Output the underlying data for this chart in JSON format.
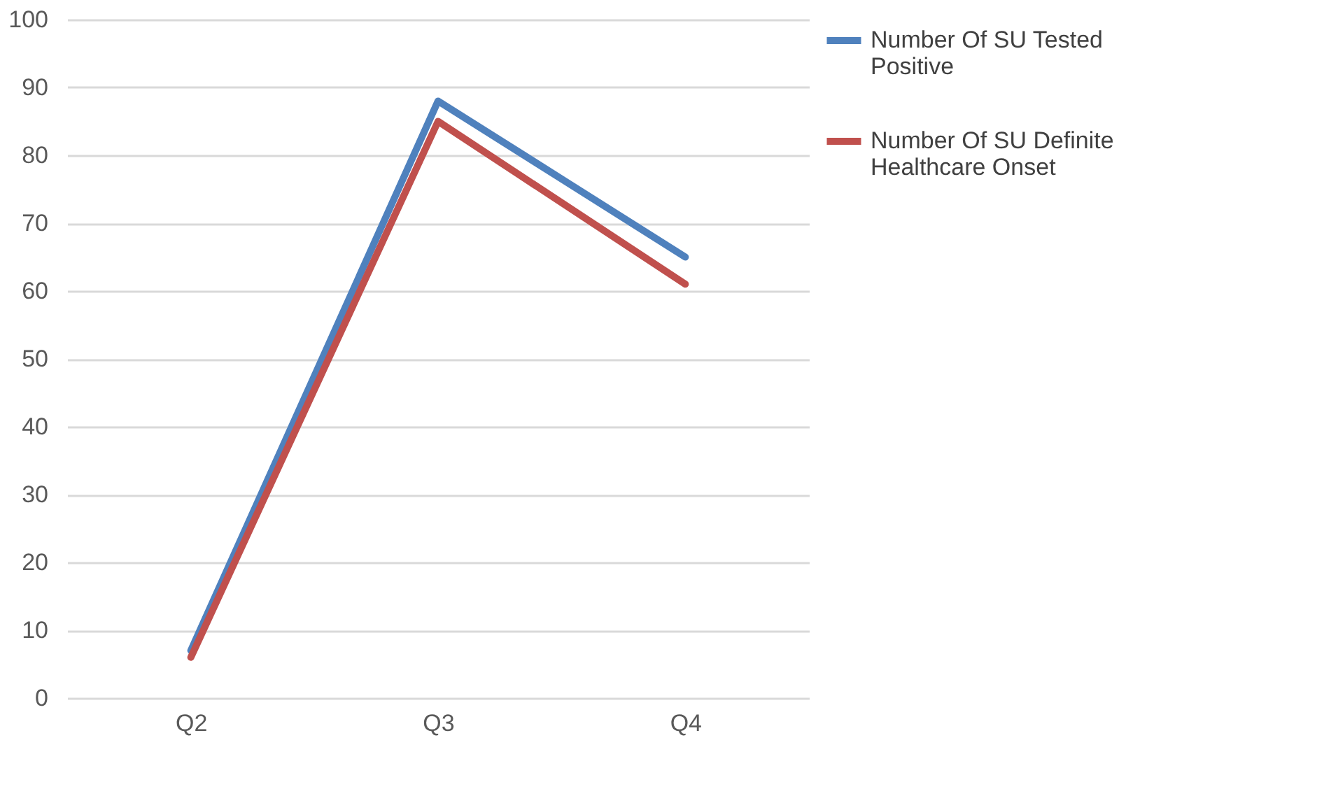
{
  "chart_data": {
    "type": "line",
    "categories": [
      "Q2",
      "Q3",
      "Q4"
    ],
    "series": [
      {
        "name": "Number Of SU Tested Positive",
        "color": "#4f81bd",
        "values": [
          7,
          88,
          65
        ]
      },
      {
        "name": "Number Of SU Definite Healthcare Onset",
        "color": "#c0504d",
        "values": [
          6,
          85,
          61
        ]
      }
    ],
    "ylim": [
      0,
      100
    ],
    "yticks": [
      0,
      10,
      20,
      30,
      40,
      50,
      60,
      70,
      80,
      90,
      100
    ],
    "grid": "y",
    "legend": "right",
    "marker": "none",
    "line_style": "solid"
  }
}
